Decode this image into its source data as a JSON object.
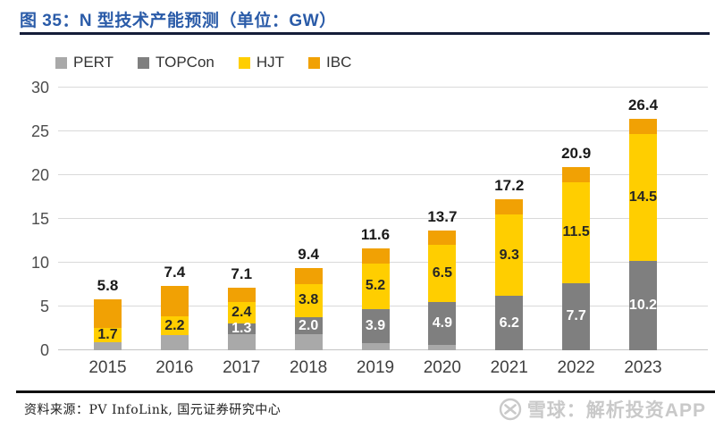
{
  "header": {
    "title": "图 35：N 型技术产能预测（单位：GW）"
  },
  "legend": [
    {
      "label": "PERT",
      "color": "#a9a9a9"
    },
    {
      "label": "TOPCon",
      "color": "#7f7f7f"
    },
    {
      "label": "HJT",
      "color": "#ffce00"
    },
    {
      "label": "IBC",
      "color": "#f1a104"
    }
  ],
  "chart_data": {
    "type": "bar",
    "stacked": true,
    "title": "N 型技术产能预测（单位：GW）",
    "categories": [
      "2015",
      "2016",
      "2017",
      "2018",
      "2019",
      "2020",
      "2021",
      "2022",
      "2023"
    ],
    "series": [
      {
        "name": "PERT",
        "color": "#a9a9a9",
        "values": [
          0.9,
          1.7,
          1.8,
          1.8,
          0.8,
          0.6,
          0,
          0,
          0
        ],
        "labels": [
          "",
          "",
          "",
          "",
          "",
          "",
          "",
          "",
          ""
        ],
        "label_color": "#ffffff"
      },
      {
        "name": "TOPCon",
        "color": "#7f7f7f",
        "values": [
          0,
          0,
          1.3,
          2.0,
          3.9,
          4.9,
          6.2,
          7.7,
          10.2
        ],
        "labels": [
          "",
          "",
          "1.3",
          "2.0",
          "3.9",
          "4.9",
          "6.2",
          "7.7",
          "10.2"
        ],
        "label_color": "#ffffff"
      },
      {
        "name": "HJT",
        "color": "#ffce00",
        "values": [
          1.7,
          2.2,
          2.4,
          3.8,
          5.2,
          6.5,
          9.3,
          11.5,
          14.5
        ],
        "labels": [
          "1.7",
          "2.2",
          "2.4",
          "3.8",
          "5.2",
          "6.5",
          "9.3",
          "11.5",
          "14.5"
        ],
        "label_color": "#262626"
      },
      {
        "name": "IBC",
        "color": "#f1a104",
        "values": [
          3.2,
          3.5,
          1.6,
          1.8,
          1.7,
          1.7,
          1.7,
          1.7,
          1.7
        ],
        "labels": [
          "",
          "",
          "",
          "",
          "",
          "",
          "",
          "",
          ""
        ],
        "label_color": "#262626"
      }
    ],
    "totals": [
      "5.8",
      "7.4",
      "7.1",
      "9.4",
      "11.6",
      "13.7",
      "17.2",
      "20.9",
      "26.4"
    ],
    "ylim": [
      0,
      30
    ],
    "yticks": [
      0,
      5,
      10,
      15,
      20,
      25,
      30
    ],
    "xlabel": "",
    "ylabel": "",
    "grid": true,
    "legend_position": "top-left"
  },
  "footer": {
    "source": "资料来源：PV InfoLink, 国元证券研究中心",
    "watermark": "雪球：解析投资APP"
  }
}
